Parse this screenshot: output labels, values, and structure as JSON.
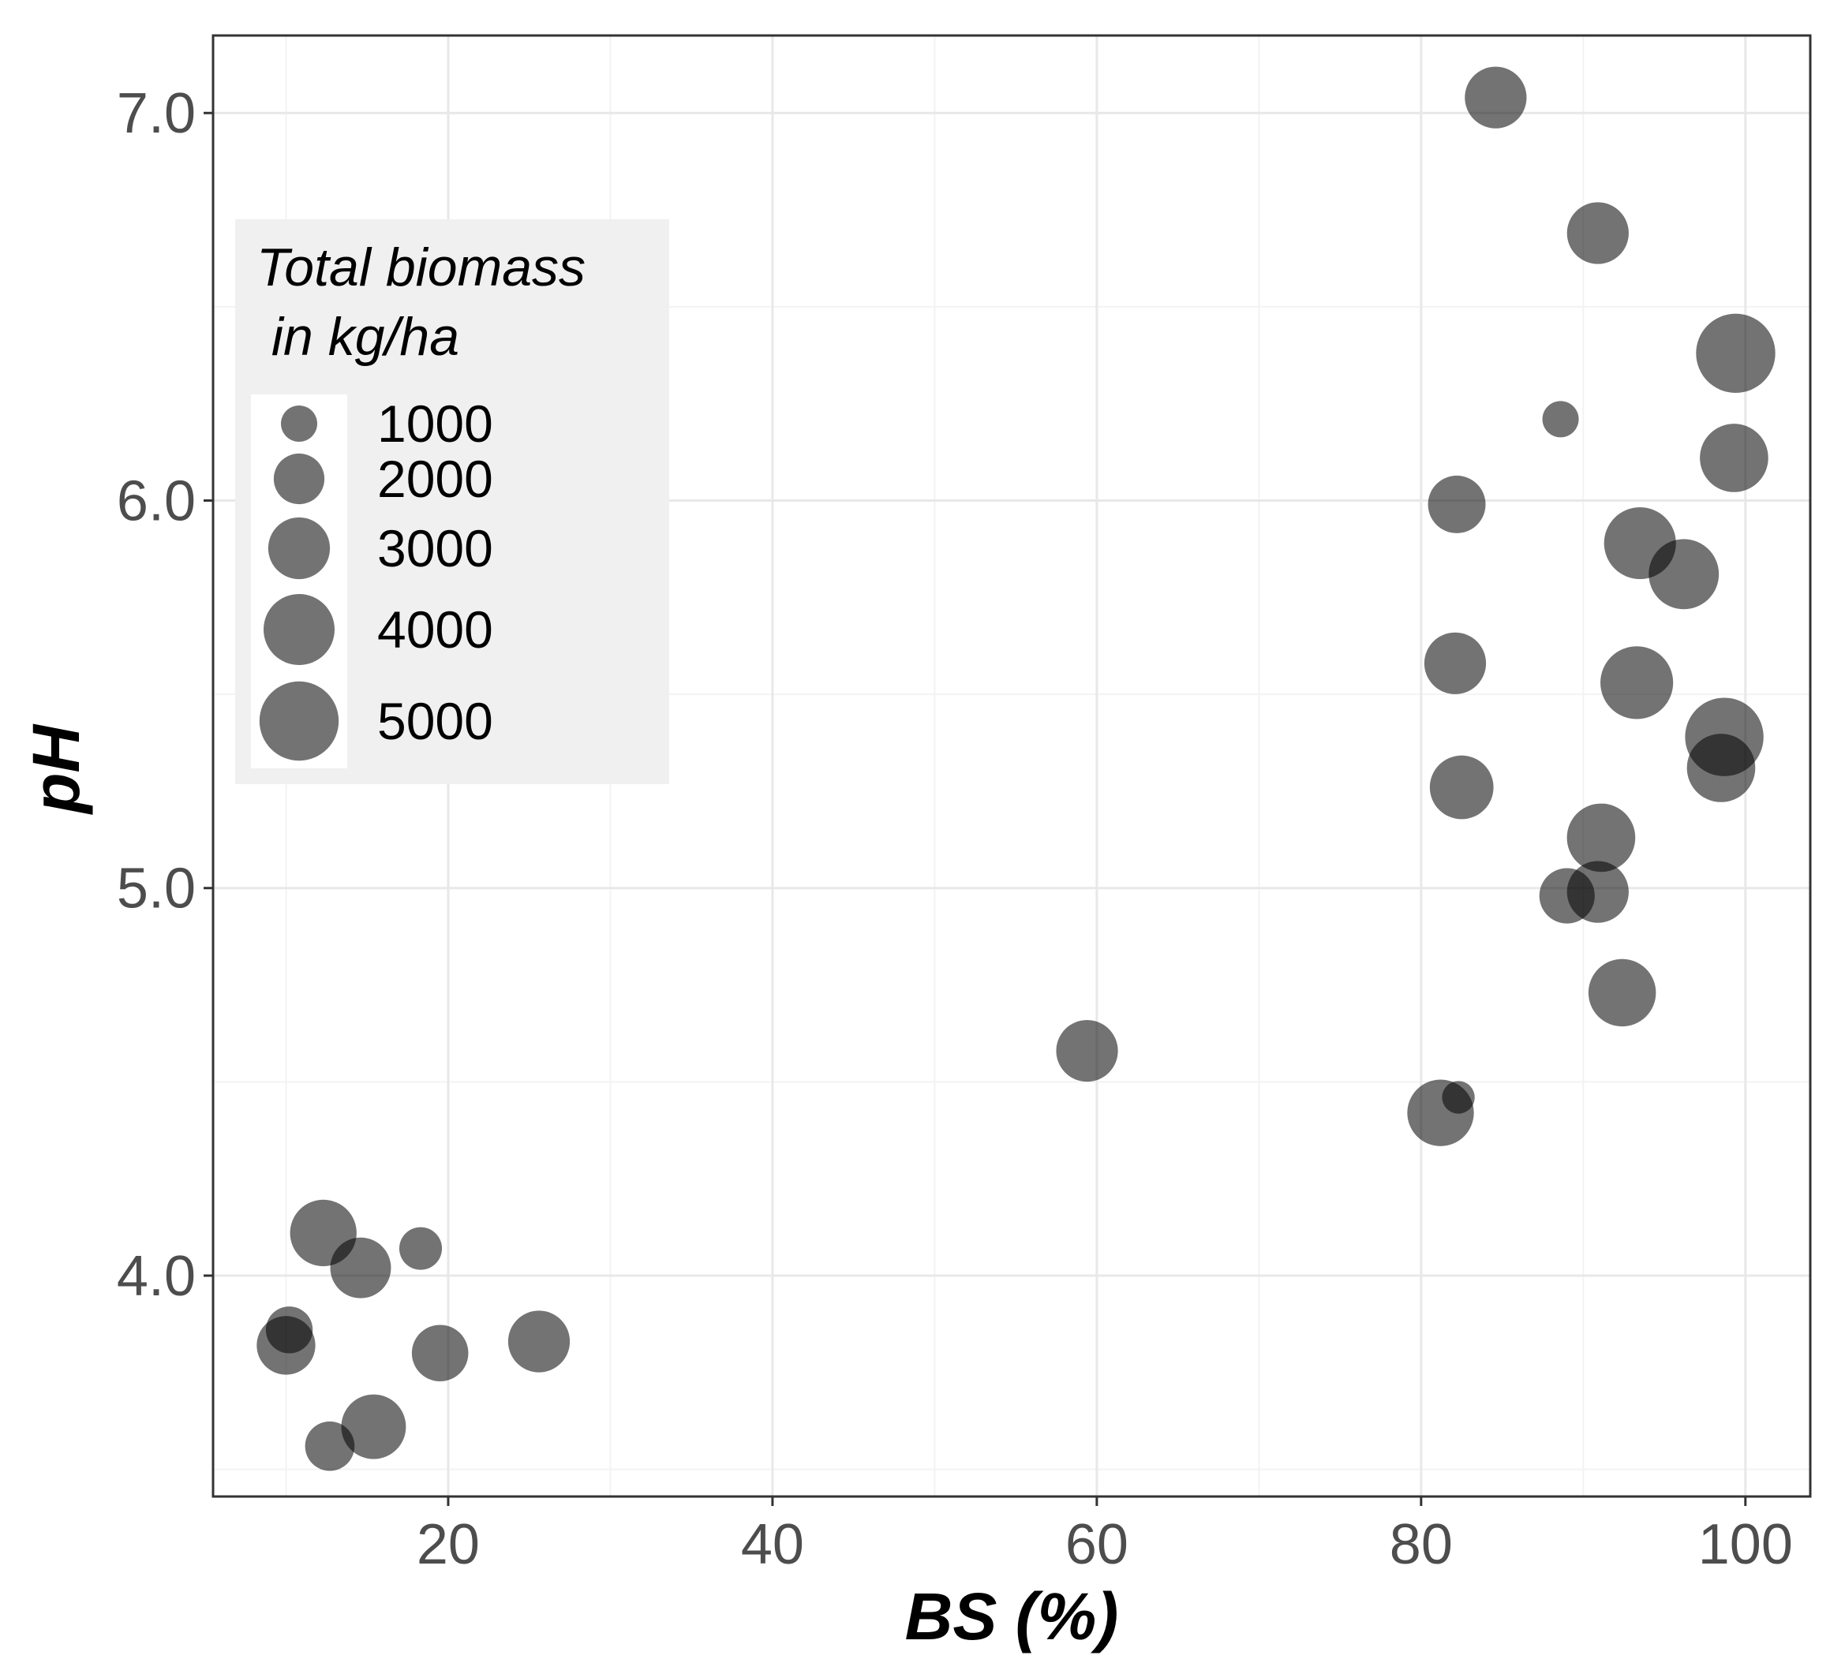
{
  "chart_data": {
    "type": "scatter",
    "title": "",
    "xlabel": "BS (%)",
    "ylabel": "pH",
    "xlim": [
      5.5,
      104
    ],
    "ylim": [
      3.43,
      7.2
    ],
    "xticks": [
      20,
      40,
      60,
      80,
      100
    ],
    "yticks": [
      4.0,
      5.0,
      6.0,
      7.0
    ],
    "xtick_labels": [
      "20",
      "40",
      "60",
      "80",
      "100"
    ],
    "ytick_labels": [
      "4.0",
      "5.0",
      "6.0",
      "7.0"
    ],
    "grid": true,
    "size_variable": "Total biomass in kg/ha",
    "legend": {
      "title_line1": "Total biomass",
      "title_line2": " in kg/ha",
      "placement": "top-left",
      "entries": [
        {
          "value": 1000,
          "label": "1000"
        },
        {
          "value": 2000,
          "label": "2000"
        },
        {
          "value": 3000,
          "label": "3000"
        },
        {
          "value": 4000,
          "label": "4000"
        },
        {
          "value": 5000,
          "label": "5000"
        }
      ]
    },
    "points": [
      {
        "x": 84.6,
        "y": 7.04,
        "biomass": 3000
      },
      {
        "x": 90.9,
        "y": 6.69,
        "biomass": 3000
      },
      {
        "x": 99.4,
        "y": 6.38,
        "biomass": 5000
      },
      {
        "x": 88.6,
        "y": 6.21,
        "biomass": 1000
      },
      {
        "x": 99.3,
        "y": 6.11,
        "biomass": 3700
      },
      {
        "x": 82.2,
        "y": 5.99,
        "biomass": 2600
      },
      {
        "x": 93.5,
        "y": 5.89,
        "biomass": 4100
      },
      {
        "x": 96.2,
        "y": 5.81,
        "biomass": 3900
      },
      {
        "x": 82.1,
        "y": 5.58,
        "biomass": 3000
      },
      {
        "x": 93.3,
        "y": 5.53,
        "biomass": 4200
      },
      {
        "x": 98.7,
        "y": 5.39,
        "biomass": 4900
      },
      {
        "x": 98.5,
        "y": 5.31,
        "biomass": 3700
      },
      {
        "x": 82.5,
        "y": 5.26,
        "biomass": 3200
      },
      {
        "x": 91.1,
        "y": 5.13,
        "biomass": 3700
      },
      {
        "x": 90.9,
        "y": 4.99,
        "biomass": 3000
      },
      {
        "x": 89.0,
        "y": 4.98,
        "biomass": 2400
      },
      {
        "x": 92.4,
        "y": 4.73,
        "biomass": 3600
      },
      {
        "x": 59.4,
        "y": 4.58,
        "biomass": 3000
      },
      {
        "x": 81.2,
        "y": 4.42,
        "biomass": 3500
      },
      {
        "x": 82.3,
        "y": 4.46,
        "biomass": 800
      },
      {
        "x": 12.3,
        "y": 4.11,
        "biomass": 3500
      },
      {
        "x": 14.6,
        "y": 4.02,
        "biomass": 2900
      },
      {
        "x": 18.3,
        "y": 4.07,
        "biomass": 1400
      },
      {
        "x": 10.2,
        "y": 3.86,
        "biomass": 1700
      },
      {
        "x": 10.0,
        "y": 3.82,
        "biomass": 2700
      },
      {
        "x": 19.5,
        "y": 3.8,
        "biomass": 2500
      },
      {
        "x": 25.6,
        "y": 3.83,
        "biomass": 3000
      },
      {
        "x": 15.4,
        "y": 3.61,
        "biomass": 3300
      },
      {
        "x": 12.7,
        "y": 3.56,
        "biomass": 1900
      }
    ]
  }
}
